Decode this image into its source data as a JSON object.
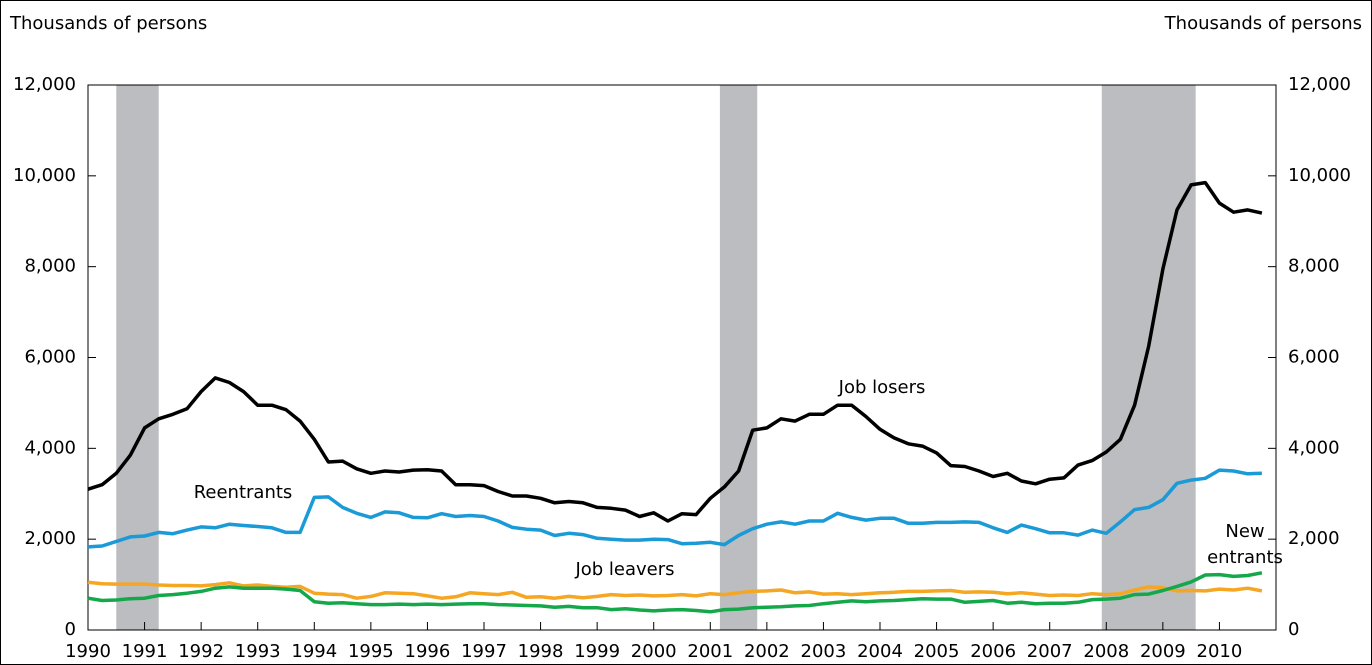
{
  "chart_data": {
    "type": "line",
    "y_label": "Thousands of persons",
    "y2_label": "Thousands of persons",
    "x": [
      1990,
      1990.25,
      1990.5,
      1990.75,
      1991,
      1991.25,
      1991.5,
      1991.75,
      1992,
      1992.25,
      1992.5,
      1992.75,
      1993,
      1993.25,
      1993.5,
      1993.75,
      1994,
      1994.25,
      1994.5,
      1994.75,
      1995,
      1995.25,
      1995.5,
      1995.75,
      1996,
      1996.25,
      1996.5,
      1996.75,
      1997,
      1997.25,
      1997.5,
      1997.75,
      1998,
      1998.25,
      1998.5,
      1998.75,
      1999,
      1999.25,
      1999.5,
      1999.75,
      2000,
      2000.25,
      2000.5,
      2000.75,
      2001,
      2001.25,
      2001.5,
      2001.75,
      2002,
      2002.25,
      2002.5,
      2002.75,
      2003,
      2003.25,
      2003.5,
      2003.75,
      2004,
      2004.25,
      2004.5,
      2004.75,
      2005,
      2005.25,
      2005.5,
      2005.75,
      2006,
      2006.25,
      2006.5,
      2006.75,
      2007,
      2007.25,
      2007.5,
      2007.75,
      2008,
      2008.25,
      2008.5,
      2008.75,
      2009,
      2009.25,
      2009.5,
      2009.75,
      2010,
      2010.25,
      2010.5,
      2010.75
    ],
    "series": [
      {
        "name": "Job losers",
        "color": "#000000",
        "values": [
          3100,
          3200,
          3450,
          3850,
          4450,
          4650,
          4750,
          4870,
          5250,
          5550,
          5450,
          5250,
          4950,
          4950,
          4850,
          4600,
          4200,
          3700,
          3720,
          3550,
          3450,
          3500,
          3480,
          3520,
          3530,
          3500,
          3200,
          3200,
          3180,
          3050,
          2950,
          2950,
          2900,
          2800,
          2830,
          2800,
          2700,
          2680,
          2640,
          2500,
          2580,
          2400,
          2560,
          2540,
          2900,
          3150,
          3500,
          4400,
          4450,
          4650,
          4600,
          4750,
          4750,
          4950,
          4950,
          4700,
          4420,
          4230,
          4100,
          4050,
          3900,
          3620,
          3600,
          3500,
          3380,
          3450,
          3280,
          3220,
          3320,
          3350,
          3630,
          3730,
          3920,
          4200,
          4950,
          6250,
          7950,
          9250,
          9800,
          9850,
          9400,
          9200,
          9250,
          9180
        ]
      },
      {
        "name": "Reentrants",
        "color": "#1a9ad6",
        "values": [
          1830,
          1850,
          1950,
          2050,
          2070,
          2150,
          2120,
          2200,
          2270,
          2250,
          2330,
          2300,
          2280,
          2250,
          2150,
          2150,
          2920,
          2930,
          2700,
          2570,
          2480,
          2600,
          2580,
          2480,
          2470,
          2560,
          2500,
          2520,
          2500,
          2400,
          2260,
          2220,
          2200,
          2080,
          2130,
          2100,
          2020,
          2000,
          1980,
          1980,
          2000,
          1990,
          1900,
          1910,
          1930,
          1880,
          2080,
          2230,
          2330,
          2380,
          2330,
          2400,
          2400,
          2570,
          2480,
          2420,
          2460,
          2460,
          2350,
          2350,
          2370,
          2370,
          2380,
          2370,
          2250,
          2150,
          2310,
          2230,
          2140,
          2140,
          2090,
          2200,
          2130,
          2380,
          2650,
          2700,
          2870,
          3230,
          3300,
          3340,
          3520,
          3500,
          3440,
          3450
        ]
      },
      {
        "name": "Job leavers",
        "color": "#f5a623",
        "values": [
          1050,
          1020,
          1010,
          1010,
          1010,
          990,
          980,
          980,
          970,
          1000,
          1040,
          970,
          990,
          960,
          940,
          960,
          810,
          790,
          780,
          700,
          740,
          820,
          810,
          800,
          750,
          700,
          730,
          820,
          800,
          780,
          830,
          720,
          730,
          700,
          740,
          710,
          740,
          780,
          760,
          770,
          750,
          760,
          780,
          750,
          800,
          780,
          820,
          850,
          860,
          880,
          820,
          840,
          790,
          800,
          780,
          800,
          820,
          830,
          850,
          850,
          860,
          870,
          830,
          840,
          830,
          800,
          820,
          790,
          760,
          770,
          760,
          800,
          780,
          800,
          880,
          950,
          930,
          860,
          870,
          860,
          900,
          880,
          920,
          860
        ]
      },
      {
        "name": "New entrants",
        "color": "#14a84a",
        "values": [
          700,
          650,
          660,
          690,
          700,
          760,
          780,
          810,
          850,
          920,
          950,
          920,
          920,
          920,
          900,
          870,
          620,
          590,
          600,
          580,
          560,
          560,
          570,
          560,
          570,
          560,
          570,
          580,
          580,
          560,
          550,
          540,
          530,
          500,
          520,
          490,
          490,
          450,
          470,
          440,
          420,
          440,
          450,
          430,
          400,
          450,
          460,
          490,
          500,
          510,
          530,
          540,
          580,
          610,
          640,
          620,
          640,
          650,
          670,
          690,
          680,
          680,
          610,
          630,
          650,
          590,
          610,
          580,
          590,
          590,
          610,
          670,
          680,
          700,
          780,
          790,
          870,
          960,
          1060,
          1210,
          1220,
          1180,
          1200,
          1260
        ]
      }
    ],
    "shaded_periods": [
      [
        1990.5,
        1991.25
      ],
      [
        2001.17,
        2001.83
      ],
      [
        2007.92,
        2009.58
      ]
    ],
    "shade_color": "#bcbdc0",
    "xlim": [
      1990,
      2011
    ],
    "xticks": [
      1990,
      1991,
      1992,
      1993,
      1994,
      1995,
      1996,
      1997,
      1998,
      1999,
      2000,
      2001,
      2002,
      2003,
      2004,
      2005,
      2006,
      2007,
      2008,
      2009,
      2010
    ],
    "ylim": [
      0,
      12000
    ],
    "yticks": [
      0,
      {
        "value": 2000,
        "label": "2,000"
      },
      {
        "value": 4000,
        "label": "4,000"
      },
      {
        "value": 6000,
        "label": "6,000"
      },
      {
        "value": 8000,
        "label": "8,000"
      },
      {
        "value": 10000,
        "label": "10,000"
      },
      {
        "value": 12000,
        "label": "12,000"
      }
    ],
    "y2lim": [
      0,
      12000
    ],
    "y2ticks": [
      0,
      {
        "value": 2000,
        "label": "2,000"
      },
      {
        "value": 4000,
        "label": "4,000"
      },
      {
        "value": 6000,
        "label": "6,000"
      },
      {
        "value": 8000,
        "label": "8,000"
      },
      {
        "value": 10000,
        "label": "10,000"
      },
      {
        "value": 12000,
        "label": "12,000"
      }
    ]
  }
}
